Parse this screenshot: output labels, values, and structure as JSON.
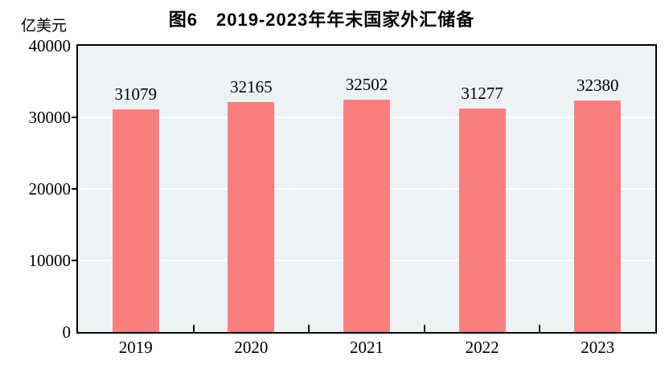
{
  "chart_data": {
    "type": "bar",
    "title": "图6　2019-2023年年末国家外汇储备",
    "unit_label": "亿美元",
    "categories": [
      "2019",
      "2020",
      "2021",
      "2022",
      "2023"
    ],
    "values": [
      31079,
      32165,
      32502,
      31277,
      32380
    ],
    "data_labels": [
      "31079",
      "32165",
      "32502",
      "31277",
      "32380"
    ],
    "ylim": [
      0,
      40000
    ],
    "yticks": [
      0,
      10000,
      20000,
      30000,
      40000
    ],
    "ytick_labels": [
      "0",
      "10000",
      "20000",
      "30000",
      "40000"
    ],
    "grid": "horizontal white major gridlines",
    "legend": "none",
    "colors": {
      "bar": "#FA8080",
      "plot_background": "#EDF3F4",
      "gridline": "#FFFFFF",
      "axis": "#000000",
      "text": "#000000"
    }
  }
}
